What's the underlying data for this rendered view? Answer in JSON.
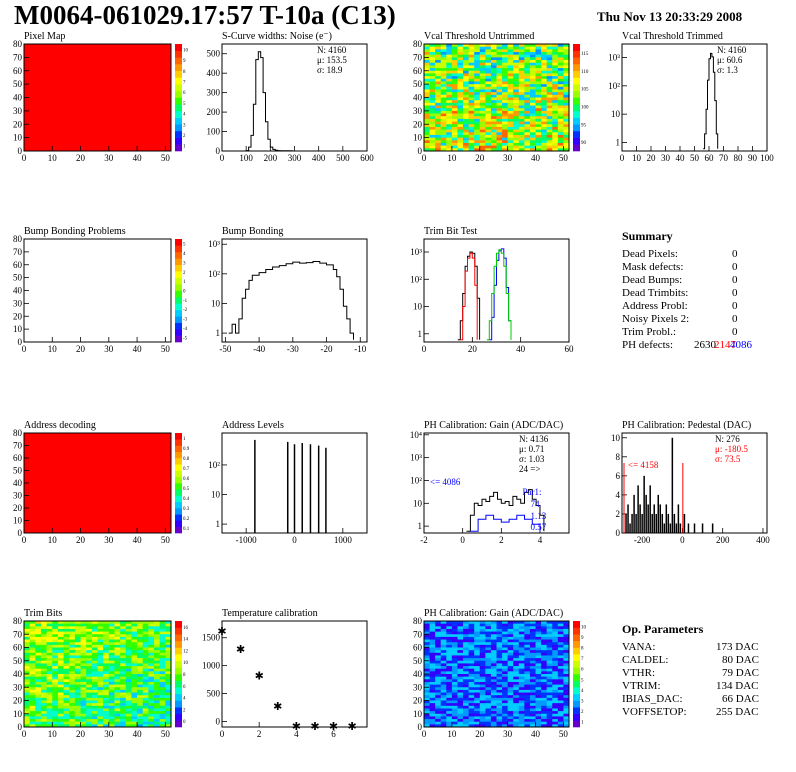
{
  "header": {
    "title": "M0064-061029.17:57 T-10a (C13)",
    "date": "Thu Nov 13 20:33:29 2008"
  },
  "colors": {
    "red": "#ff0000",
    "palette": [
      "#6600cc",
      "#3300ff",
      "#0033ff",
      "#0099ff",
      "#00ccff",
      "#00ffcc",
      "#00ff66",
      "#33ff00",
      "#99ff00",
      "#ccff00",
      "#ffff00",
      "#ffcc00",
      "#ff9900",
      "#ff6600",
      "#ff3300",
      "#ff0000"
    ]
  },
  "panels": [
    {
      "id": "pixel-map",
      "title": "Pixel Map",
      "type": "heatmap",
      "fill": "uniform-red",
      "xlim": [
        0,
        52
      ],
      "ylim": [
        0,
        80
      ],
      "xticks": [
        "0",
        "10",
        "20",
        "30",
        "40",
        "50"
      ],
      "yticks": [
        "0",
        "10",
        "20",
        "30",
        "40",
        "50",
        "60",
        "70",
        "80"
      ],
      "zticks": [
        "1",
        "2",
        "3",
        "4",
        "5",
        "6",
        "7",
        "8",
        "9",
        "10"
      ]
    },
    {
      "id": "s-curve",
      "title": "S-Curve widths: Noise (e⁻)",
      "type": "histogram",
      "xlim": [
        0,
        600
      ],
      "ylim": [
        0,
        550
      ],
      "xticks": [
        "0",
        "100",
        "200",
        "300",
        "400",
        "500",
        "600"
      ],
      "yticks": [
        "0",
        "100",
        "200",
        "300",
        "400",
        "500"
      ],
      "stats": [
        "N: 4160",
        "μ: 153.5",
        "σ: 18.9"
      ],
      "series": [
        {
          "x": [
            80,
            100,
            110,
            120,
            130,
            140,
            150,
            160,
            170,
            180,
            190,
            200,
            210,
            220,
            230,
            240,
            260,
            290
          ],
          "y": [
            0,
            2,
            20,
            80,
            240,
            470,
            510,
            480,
            300,
            150,
            60,
            20,
            8,
            4,
            2,
            1,
            1,
            0
          ]
        }
      ]
    },
    {
      "id": "vcal-untrimmed",
      "title": "Vcal Threshold Untrimmed",
      "type": "heatmap",
      "fill": "noise",
      "xlim": [
        0,
        52
      ],
      "ylim": [
        0,
        80
      ],
      "xticks": [
        "0",
        "10",
        "20",
        "30",
        "40",
        "50"
      ],
      "yticks": [
        "0",
        "10",
        "20",
        "30",
        "40",
        "50",
        "60",
        "70",
        "80"
      ],
      "zticks": [
        "90",
        "95",
        "100",
        "105",
        "110",
        "115"
      ]
    },
    {
      "id": "vcal-trimmed",
      "title": "Vcal Threshold Trimmed",
      "type": "histogram",
      "ylog": true,
      "xlim": [
        0,
        100
      ],
      "ylim": [
        0.5,
        3000
      ],
      "xticks": [
        "0",
        "10",
        "20",
        "30",
        "40",
        "50",
        "60",
        "70",
        "80",
        "90",
        "100"
      ],
      "yticks": [
        "1",
        "10",
        "10²",
        "10³"
      ],
      "stats": [
        "N: 4160",
        "μ: 60.6",
        "σ:  1.3"
      ],
      "series": [
        {
          "x": [
            56,
            57,
            58,
            59,
            60,
            61,
            62,
            63,
            64,
            65,
            66
          ],
          "y": [
            0.6,
            2,
            15,
            160,
            900,
            1400,
            1050,
            300,
            30,
            2,
            0.6
          ]
        }
      ]
    },
    {
      "id": "bump-problems",
      "title": "Bump Bonding Problems",
      "type": "heatmap",
      "fill": "empty",
      "xlim": [
        0,
        52
      ],
      "ylim": [
        0,
        80
      ],
      "xticks": [
        "0",
        "10",
        "20",
        "30",
        "40",
        "50"
      ],
      "yticks": [
        "0",
        "10",
        "20",
        "30",
        "40",
        "50",
        "60",
        "70",
        "80"
      ],
      "zticks": [
        "-5",
        "-4",
        "-3",
        "-2",
        "-1",
        "0",
        "1",
        "2",
        "3",
        "4",
        "5"
      ]
    },
    {
      "id": "bump-bonding",
      "title": "Bump Bonding",
      "type": "histogram",
      "ylog": true,
      "xlim": [
        -51,
        -8
      ],
      "ylim": [
        0.5,
        1500
      ],
      "xticks": [
        "-50",
        "-40",
        "-30",
        "-20",
        "-10"
      ],
      "yticks": [
        "1",
        "10",
        "10²",
        "10³"
      ],
      "series": [
        {
          "x": [
            -49,
            -48,
            -47,
            -46,
            -45,
            -44,
            -43,
            -42,
            -40,
            -38,
            -36,
            -34,
            -32,
            -30,
            -28,
            -26,
            -24,
            -22,
            -20,
            -18,
            -17,
            -16,
            -15,
            -14,
            -13,
            -12
          ],
          "y": [
            1,
            2,
            1,
            3,
            15,
            30,
            60,
            90,
            110,
            140,
            170,
            190,
            220,
            250,
            230,
            240,
            260,
            230,
            200,
            140,
            80,
            30,
            8,
            3,
            1,
            0.6
          ]
        }
      ]
    },
    {
      "id": "trim-bit-test",
      "title": "Trim Bit Test",
      "type": "histogram",
      "ylog": true,
      "xlim": [
        0,
        60
      ],
      "ylim": [
        0.5,
        3000
      ],
      "xticks": [
        "0",
        "20",
        "40",
        "60"
      ],
      "yticks": [
        "1",
        "10",
        "10²",
        "10³"
      ],
      "series": [
        {
          "color": "#000000",
          "x": [
            14,
            15,
            16,
            17,
            18,
            19,
            20,
            21,
            22,
            23
          ],
          "y": [
            0.6,
            3,
            30,
            300,
            700,
            1000,
            900,
            300,
            20,
            0.6
          ]
        },
        {
          "color": "#ff0000",
          "x": [
            15,
            16,
            17,
            18,
            19,
            20,
            21,
            22
          ],
          "y": [
            0.6,
            10,
            200,
            600,
            900,
            600,
            60,
            0.6
          ]
        },
        {
          "color": "#0000ff",
          "x": [
            27,
            28,
            29,
            30,
            31,
            32,
            33,
            34,
            35,
            36
          ],
          "y": [
            0.6,
            4,
            60,
            500,
            1100,
            1300,
            600,
            50,
            3,
            0.6
          ]
        },
        {
          "color": "#00cc00",
          "x": [
            26,
            27,
            28,
            29,
            30,
            31,
            32,
            33,
            34,
            35,
            36
          ],
          "y": [
            0.6,
            3,
            30,
            300,
            900,
            1200,
            900,
            300,
            30,
            3,
            0.6
          ]
        }
      ]
    },
    {
      "id": "summary",
      "type": "summary",
      "heading": "Summary",
      "rows": [
        {
          "label": "Dead Pixels:",
          "value": "0"
        },
        {
          "label": "Mask defects:",
          "value": "0"
        },
        {
          "label": "Dead Bumps:",
          "value": "0"
        },
        {
          "label": "Dead Trimbits:",
          "value": "0"
        },
        {
          "label": "Address Probl:",
          "value": "0"
        },
        {
          "label": "Noisy Pixels 2:",
          "value": "0"
        },
        {
          "label": "Trim Probl.:",
          "value": "0"
        }
      ],
      "ph_label": "PH defects:",
      "ph_v1": "2630",
      "ph_v2": "2147",
      "ph_v3": "4086"
    },
    {
      "id": "address-decoding",
      "title": "Address decoding",
      "type": "heatmap",
      "fill": "uniform-red",
      "xlim": [
        0,
        52
      ],
      "ylim": [
        0,
        80
      ],
      "xticks": [
        "0",
        "10",
        "20",
        "30",
        "40",
        "50"
      ],
      "yticks": [
        "0",
        "10",
        "20",
        "30",
        "40",
        "50",
        "60",
        "70",
        "80"
      ],
      "zticks": [
        "0.1",
        "0.2",
        "0.3",
        "0.4",
        "0.5",
        "0.6",
        "0.7",
        "0.8",
        "0.9",
        "1"
      ]
    },
    {
      "id": "address-levels",
      "title": "Address Levels",
      "type": "histogram",
      "ylog": true,
      "xlim": [
        -1500,
        1500
      ],
      "ylim": [
        0.5,
        1200
      ],
      "xticks": [
        "-1000",
        "0",
        "1000"
      ],
      "yticks": [
        "1",
        "10",
        "10²"
      ],
      "spikes": [
        -820,
        -140,
        0,
        160,
        330,
        500,
        650
      ],
      "spike_heights": [
        700,
        600,
        500,
        550,
        500,
        450,
        380
      ]
    },
    {
      "id": "ph-gain",
      "title": "PH Calibration: Gain (ADC/DAC)",
      "type": "histogram",
      "ylog": true,
      "xlim": [
        -2,
        5.5
      ],
      "ylim": [
        0.5,
        12000
      ],
      "xticks": [
        "-2",
        "0",
        "2",
        "4"
      ],
      "yticks": [
        "1",
        "10",
        "10²",
        "10³",
        "10⁴"
      ],
      "stats": [
        "N: 4136",
        "μ: 0.71",
        "σ: 1.03",
        "24 =>"
      ],
      "annot_left": "<= 4086",
      "fit": [
        "Par1:",
        "74",
        "1.13",
        "0.57"
      ],
      "series": [
        {
          "color": "#000000",
          "x": [
            0.2,
            0.4,
            0.6,
            0.8,
            1.0,
            1.2,
            1.4,
            1.6,
            1.8,
            2.0,
            2.2,
            2.4,
            2.6,
            2.8,
            3.0,
            3.2,
            3.4,
            3.6,
            3.8,
            4.0,
            4.2
          ],
          "y": [
            0.6,
            3,
            10,
            8,
            15,
            12,
            20,
            30,
            15,
            10,
            12,
            8,
            20,
            15,
            10,
            30,
            40,
            15,
            8,
            3,
            0.6
          ]
        },
        {
          "color": "#0000ff",
          "x": [
            0.4,
            0.8,
            1.2,
            1.6,
            2.0,
            2.4,
            2.8,
            3.2,
            3.6,
            4.0
          ],
          "y": [
            0.6,
            2,
            3,
            2,
            1.5,
            2,
            3,
            2,
            1.2,
            0.6
          ]
        }
      ]
    },
    {
      "id": "ph-pedestal",
      "title": "PH Calibration: Pedestal (DAC)",
      "type": "histogram",
      "xlim": [
        -300,
        420
      ],
      "ylim": [
        0,
        10.5
      ],
      "xticks": [
        "-200",
        "0",
        "200",
        "400"
      ],
      "yticks": [
        "0",
        "2",
        "4",
        "6",
        "8",
        "10"
      ],
      "stats_black": "N:  276",
      "stats_red": [
        "μ: -180.5",
        "σ: 73.5"
      ],
      "annot_left": "<= 4158",
      "spikes": [
        -280,
        -270,
        -260,
        -250,
        -240,
        -230,
        -220,
        -210,
        -200,
        -190,
        -180,
        -170,
        -160,
        -150,
        -140,
        -130,
        -120,
        -110,
        -100,
        -90,
        -80,
        -70,
        -60,
        -50,
        -40,
        -30,
        -20,
        -10,
        10,
        30,
        60,
        100,
        150
      ],
      "spike_heights": [
        2,
        3,
        1,
        2,
        4,
        2,
        5,
        3,
        2,
        6,
        4,
        3,
        5,
        2,
        3,
        2,
        4,
        3,
        2,
        1,
        3,
        2,
        1,
        10,
        2,
        1,
        3,
        1,
        2,
        1,
        1,
        1,
        1
      ],
      "red_lines": [
        -290,
        2
      ]
    },
    {
      "id": "trim-bits",
      "title": "Trim Bits",
      "type": "heatmap",
      "fill": "noise-green",
      "xlim": [
        0,
        52
      ],
      "ylim": [
        0,
        80
      ],
      "xticks": [
        "0",
        "10",
        "20",
        "30",
        "40",
        "50"
      ],
      "yticks": [
        "0",
        "10",
        "20",
        "30",
        "40",
        "50",
        "60",
        "70",
        "80"
      ],
      "zticks": [
        "0",
        "2",
        "4",
        "6",
        "8",
        "10",
        "12",
        "14",
        "16"
      ]
    },
    {
      "id": "temp-cal",
      "title": "Temperature calibration",
      "type": "scatter",
      "xlim": [
        0,
        7.8
      ],
      "ylim": [
        -100,
        1800
      ],
      "xticks": [
        "0",
        "2",
        "4",
        "6"
      ],
      "yticks": [
        "0",
        "500",
        "1000",
        "1500"
      ],
      "points": [
        [
          0,
          1620
        ],
        [
          1,
          1300
        ],
        [
          2,
          820
        ],
        [
          3,
          280
        ],
        [
          4,
          -80
        ],
        [
          5,
          -80
        ],
        [
          6,
          -80
        ],
        [
          7,
          -80
        ]
      ]
    },
    {
      "id": "ph-gain-map",
      "title": "PH Calibration: Gain (ADC/DAC)",
      "type": "heatmap",
      "fill": "noise-blue",
      "xlim": [
        0,
        52
      ],
      "ylim": [
        0,
        80
      ],
      "xticks": [
        "0",
        "10",
        "20",
        "30",
        "40",
        "50"
      ],
      "yticks": [
        "0",
        "10",
        "20",
        "30",
        "40",
        "50",
        "60",
        "70",
        "80"
      ],
      "zticks": [
        "1",
        "2",
        "3",
        "4",
        "5",
        "6",
        "7",
        "8",
        "9",
        "10"
      ]
    },
    {
      "id": "op-params",
      "type": "summary",
      "heading": "Op. Parameters",
      "rows": [
        {
          "label": "VANA:",
          "value": "173 DAC"
        },
        {
          "label": "CALDEL:",
          "value": "80 DAC"
        },
        {
          "label": "VTHR:",
          "value": "79 DAC"
        },
        {
          "label": "VTRIM:",
          "value": "134 DAC"
        },
        {
          "label": "IBIAS_DAC:",
          "value": "66 DAC"
        },
        {
          "label": "VOFFSETOP:",
          "value": "255 DAC"
        }
      ]
    }
  ]
}
